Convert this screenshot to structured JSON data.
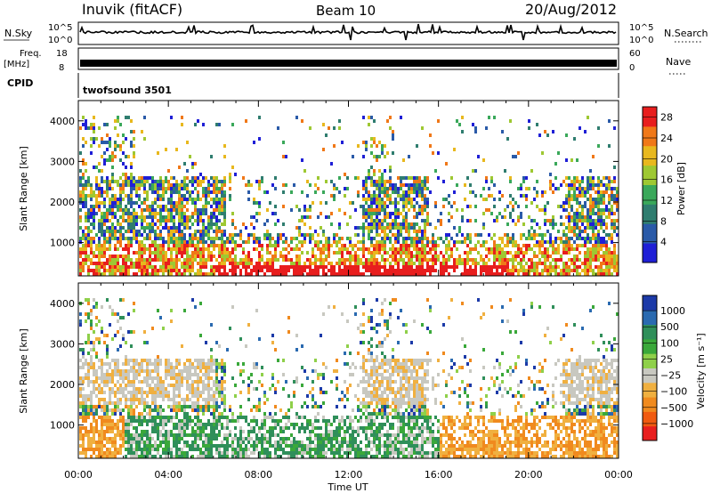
{
  "header": {
    "station": "Inuvik (fitACF)",
    "beam": "Beam 10",
    "date": "20/Aug/2012"
  },
  "status_panels": {
    "nsky_label": "N.Sky",
    "nsky_ticks": [
      "10^5",
      "10^0"
    ],
    "nsearch_label": "N.Search",
    "nsearch_ticks": [
      "10^5",
      "10^0"
    ],
    "freq_label": "Freq.",
    "freq_unit": "[MHz]",
    "freq_ticks": [
      "18",
      "8"
    ],
    "nave_label": "Nave",
    "nave_ticks": [
      "60",
      "0"
    ],
    "cpid_label": "CPID",
    "cpid_value": "twofsound 3501"
  },
  "chart_data": [
    {
      "type": "heatmap",
      "name": "power",
      "ylabel": "Slant Range [km]",
      "xlabel": "Time UT",
      "x_ticks": [
        "00:00",
        "04:00",
        "08:00",
        "12:00",
        "16:00",
        "20:00",
        "00:00"
      ],
      "y_ticks": [
        "1000",
        "2000",
        "3000",
        "4000"
      ],
      "xlim_hours": [
        0,
        24
      ],
      "ylim_km": [
        180,
        4500
      ],
      "colorbar_label": "Power [dB]",
      "colorbar_ticks": [
        "4",
        "8",
        "12",
        "16",
        "20",
        "24",
        "28"
      ],
      "colorbar_range": [
        0,
        30
      ],
      "colorbar_colors": [
        "#1f1fd6",
        "#2a5aa8",
        "#2f7d6f",
        "#3aa85a",
        "#9ec832",
        "#e8b81e",
        "#f07818",
        "#e81e1e"
      ]
    },
    {
      "type": "heatmap",
      "name": "velocity",
      "ylabel": "Slant Range [km]",
      "xlabel": "Time UT",
      "x_ticks": [
        "00:00",
        "04:00",
        "08:00",
        "12:00",
        "16:00",
        "20:00",
        "00:00"
      ],
      "y_ticks": [
        "1000",
        "2000",
        "3000",
        "4000"
      ],
      "xlim_hours": [
        0,
        24
      ],
      "ylim_km": [
        180,
        4500
      ],
      "colorbar_label": "Velocity [m s⁻¹]",
      "colorbar_ticks": [
        "1000",
        "500",
        "100",
        "25",
        "−25",
        "−100",
        "−500",
        "−1000"
      ],
      "colorbar_colors": [
        "#1c3aa8",
        "#2a6ab0",
        "#2f8f5a",
        "#3aa83a",
        "#8fd04a",
        "#c8c8c0",
        "#f0b040",
        "#f08a1e",
        "#f05a10",
        "#e81e1e"
      ]
    }
  ]
}
